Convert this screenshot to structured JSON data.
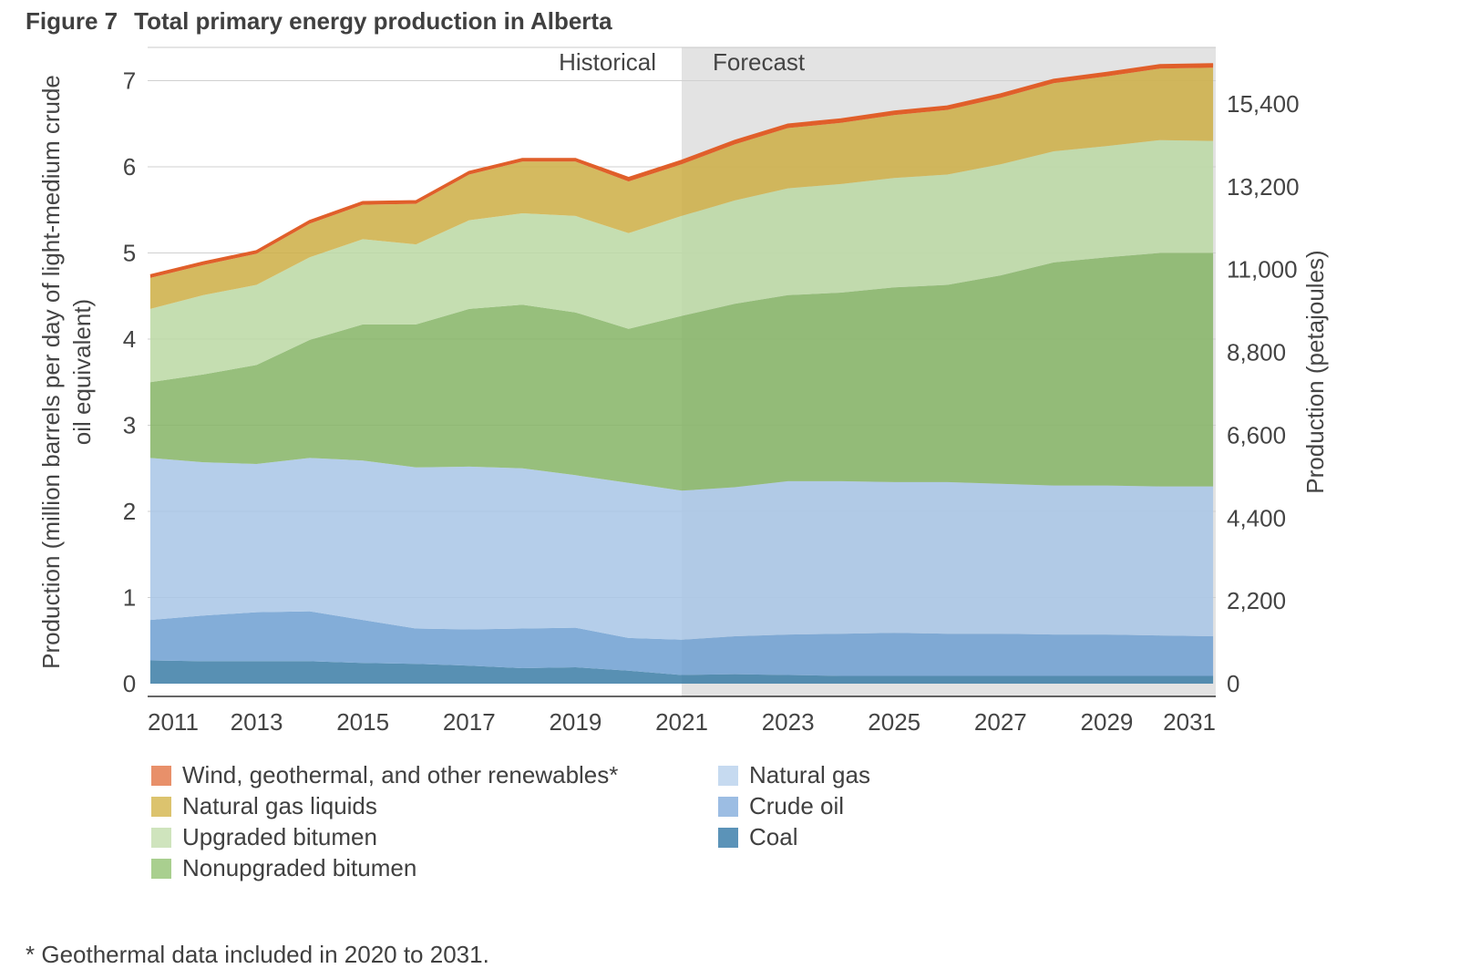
{
  "figure": {
    "number": "Figure 7",
    "title": "Total primary energy production in Alberta"
  },
  "footnote": "* Geothermal data included in 2020 to 2031.",
  "chart_data": {
    "type": "area",
    "stacked": true,
    "x": [
      2011,
      2012,
      2013,
      2014,
      2015,
      2016,
      2017,
      2018,
      2019,
      2020,
      2021,
      2022,
      2023,
      2024,
      2025,
      2026,
      2027,
      2028,
      2029,
      2030,
      2031
    ],
    "x_ticks": [
      "2011",
      "2013",
      "2015",
      "2017",
      "2019",
      "2021",
      "2023",
      "2025",
      "2027",
      "2029",
      "2031"
    ],
    "ylabel": "Production (million barrels per day of light-medium crude oil equivalent)",
    "ylim": [
      0,
      7.5
    ],
    "y_ticks": [
      "0",
      "1",
      "2",
      "3",
      "4",
      "5",
      "6",
      "7"
    ],
    "y2label": "Production (petajoules)",
    "y2_ticks": [
      "0",
      "2,200",
      "4,400",
      "6,600",
      "8,800",
      "11,000",
      "13,200",
      "15,400"
    ],
    "regions": [
      {
        "label": "Historical",
        "from": 2010.9,
        "to": 2021,
        "shaded": false
      },
      {
        "label": "Forecast",
        "from": 2021,
        "to": 2031.1,
        "shaded": true,
        "color": "#e3e3e3"
      }
    ],
    "series": [
      {
        "name": "Coal",
        "color": "#3d7ea6",
        "legend_color": "#5b93b8",
        "values": [
          0.27,
          0.26,
          0.26,
          0.26,
          0.24,
          0.23,
          0.21,
          0.18,
          0.19,
          0.15,
          0.1,
          0.11,
          0.1,
          0.09,
          0.09,
          0.09,
          0.09,
          0.09,
          0.09,
          0.09,
          0.09
        ]
      },
      {
        "name": "Crude oil",
        "color": "#6f9fd2",
        "legend_color": "#9cbde3",
        "values": [
          0.47,
          0.53,
          0.57,
          0.58,
          0.5,
          0.41,
          0.42,
          0.46,
          0.46,
          0.38,
          0.41,
          0.44,
          0.47,
          0.49,
          0.5,
          0.49,
          0.49,
          0.48,
          0.48,
          0.47,
          0.46
        ]
      },
      {
        "name": "Natural gas",
        "color": "#a9c6e6",
        "legend_color": "#c6daf0",
        "values": [
          1.88,
          1.78,
          1.72,
          1.78,
          1.85,
          1.87,
          1.89,
          1.86,
          1.77,
          1.8,
          1.73,
          1.73,
          1.78,
          1.77,
          1.75,
          1.76,
          1.74,
          1.73,
          1.73,
          1.73,
          1.74
        ]
      },
      {
        "name": "Nonupgraded bitumen",
        "color": "#86b467",
        "legend_color": "#a9cf8f",
        "values": [
          0.88,
          1.02,
          1.15,
          1.37,
          1.58,
          1.66,
          1.83,
          1.9,
          1.89,
          1.79,
          2.03,
          2.13,
          2.16,
          2.19,
          2.26,
          2.29,
          2.42,
          2.59,
          2.65,
          2.71,
          2.71
        ]
      },
      {
        "name": "Upgraded bitumen",
        "color": "#bcd8a4",
        "legend_color": "#cfe4bd",
        "values": [
          0.85,
          0.92,
          0.93,
          0.96,
          0.99,
          0.93,
          1.03,
          1.06,
          1.12,
          1.11,
          1.16,
          1.2,
          1.24,
          1.26,
          1.27,
          1.28,
          1.29,
          1.29,
          1.29,
          1.31,
          1.3
        ]
      },
      {
        "name": "Natural gas liquids",
        "color": "#cdaf46",
        "legend_color": "#dcc36e",
        "values": [
          0.36,
          0.35,
          0.36,
          0.39,
          0.4,
          0.47,
          0.53,
          0.6,
          0.63,
          0.6,
          0.6,
          0.65,
          0.7,
          0.71,
          0.73,
          0.75,
          0.77,
          0.79,
          0.81,
          0.83,
          0.85
        ]
      },
      {
        "name": "Wind, geothermal, and other renewables*",
        "color": "#e05f2a",
        "legend_color": "#e8906a",
        "values": [
          0.03,
          0.03,
          0.03,
          0.03,
          0.03,
          0.03,
          0.03,
          0.03,
          0.03,
          0.04,
          0.04,
          0.04,
          0.04,
          0.04,
          0.04,
          0.04,
          0.04,
          0.04,
          0.04,
          0.04,
          0.04
        ]
      }
    ],
    "legend_order": [
      "Wind, geothermal, and other renewables*",
      "Natural gas liquids",
      "Upgraded bitumen",
      "Nonupgraded bitumen",
      "Natural gas",
      "Crude oil",
      "Coal"
    ],
    "legend_placement": "bottom",
    "grid": true
  }
}
